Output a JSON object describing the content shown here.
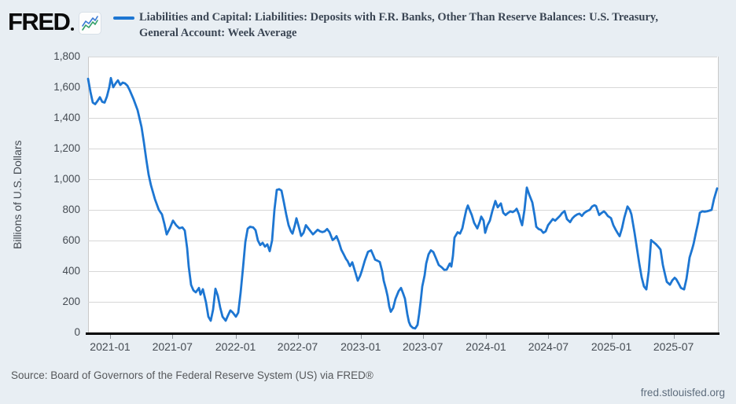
{
  "logo": {
    "text": "FRED",
    "badge_icon": "sparkline-icon"
  },
  "legend": {
    "series_color": "#1d76d2",
    "title_line1": "Liabilities and Capital: Liabilities: Deposits with F.R. Banks, Other Than Reserve Balances: U.S. Treasury,",
    "title_line2": "General Account: Week Average"
  },
  "footer": {
    "source": "Source: Board of Governors of the Federal Reserve System (US) via FRED®",
    "link": "fred.stlouisfed.org"
  },
  "chart_data": {
    "type": "line",
    "title": "Liabilities and Capital: Liabilities: Deposits with F.R. Banks, Other Than Reserve Balances: U.S. Treasury, General Account: Week Average",
    "ylabel": "Billions of U.S. Dollars",
    "units": "billions of U.S. dollars, weekly averages",
    "ylim": [
      0,
      1800
    ],
    "grid": "horizontal",
    "legend_position": "top",
    "line_color": "#1d76d2",
    "background_color": "#e8eef3",
    "plot_background": "#ffffff",
    "y_ticks": [
      {
        "label": "0",
        "value": 0
      },
      {
        "label": "200",
        "value": 200
      },
      {
        "label": "400",
        "value": 400
      },
      {
        "label": "600",
        "value": 600
      },
      {
        "label": "800",
        "value": 800
      },
      {
        "label": "1,000",
        "value": 1000
      },
      {
        "label": "1,200",
        "value": 1200
      },
      {
        "label": "1,400",
        "value": 1400
      },
      {
        "label": "1,600",
        "value": 1600
      },
      {
        "label": "1,800",
        "value": 1800
      }
    ],
    "x_ticks": [
      {
        "label": "2021-01",
        "f": 0.035
      },
      {
        "label": "2021-07",
        "f": 0.1341
      },
      {
        "label": "2022-01",
        "f": 0.2345
      },
      {
        "label": "2022-07",
        "f": 0.3331
      },
      {
        "label": "2023-01",
        "f": 0.4335
      },
      {
        "label": "2023-07",
        "f": 0.5321
      },
      {
        "label": "2024-01",
        "f": 0.6325
      },
      {
        "label": "2024-07",
        "f": 0.7318
      },
      {
        "label": "2025-01",
        "f": 0.832
      },
      {
        "label": "2025-07",
        "f": 0.9308
      }
    ],
    "series": [
      {
        "name": "Deposits with F.R. Banks, Other Than Reserve Balances: U.S. Treasury, General Account: Week Average",
        "point_format": "[x_fraction_of_time_axis, billions_of_usd]",
        "points": [
          [
            0.0,
            1655
          ],
          [
            0.0037,
            1570
          ],
          [
            0.0075,
            1500
          ],
          [
            0.0112,
            1490
          ],
          [
            0.015,
            1510
          ],
          [
            0.0187,
            1535
          ],
          [
            0.0225,
            1505
          ],
          [
            0.0262,
            1500
          ],
          [
            0.03,
            1540
          ],
          [
            0.0337,
            1600
          ],
          [
            0.0362,
            1660
          ],
          [
            0.04,
            1600
          ],
          [
            0.0437,
            1625
          ],
          [
            0.0475,
            1645
          ],
          [
            0.0512,
            1615
          ],
          [
            0.055,
            1630
          ],
          [
            0.0587,
            1625
          ],
          [
            0.0625,
            1610
          ],
          [
            0.0662,
            1580
          ],
          [
            0.0725,
            1520
          ],
          [
            0.0787,
            1450
          ],
          [
            0.085,
            1340
          ],
          [
            0.0887,
            1240
          ],
          [
            0.0925,
            1130
          ],
          [
            0.0962,
            1030
          ],
          [
            0.1,
            960
          ],
          [
            0.1062,
            870
          ],
          [
            0.1125,
            800
          ],
          [
            0.1175,
            770
          ],
          [
            0.1212,
            710
          ],
          [
            0.125,
            640
          ],
          [
            0.13,
            680
          ],
          [
            0.135,
            730
          ],
          [
            0.14,
            700
          ],
          [
            0.145,
            680
          ],
          [
            0.15,
            685
          ],
          [
            0.1537,
            665
          ],
          [
            0.1575,
            550
          ],
          [
            0.16,
            430
          ],
          [
            0.1637,
            310
          ],
          [
            0.1675,
            275
          ],
          [
            0.1712,
            262
          ],
          [
            0.1762,
            290
          ],
          [
            0.1787,
            247
          ],
          [
            0.1825,
            282
          ],
          [
            0.1875,
            196
          ],
          [
            0.1912,
            103
          ],
          [
            0.195,
            77
          ],
          [
            0.1987,
            150
          ],
          [
            0.2025,
            285
          ],
          [
            0.2062,
            240
          ],
          [
            0.21,
            163
          ],
          [
            0.2137,
            103
          ],
          [
            0.2187,
            77
          ],
          [
            0.2225,
            112
          ],
          [
            0.2262,
            144
          ],
          [
            0.23,
            130
          ],
          [
            0.235,
            103
          ],
          [
            0.2387,
            130
          ],
          [
            0.2425,
            260
          ],
          [
            0.2462,
            420
          ],
          [
            0.25,
            590
          ],
          [
            0.2537,
            677
          ],
          [
            0.2575,
            690
          ],
          [
            0.2625,
            685
          ],
          [
            0.2662,
            667
          ],
          [
            0.27,
            600
          ],
          [
            0.2737,
            570
          ],
          [
            0.2775,
            585
          ],
          [
            0.2812,
            560
          ],
          [
            0.285,
            575
          ],
          [
            0.2887,
            530
          ],
          [
            0.2925,
            600
          ],
          [
            0.2962,
            800
          ],
          [
            0.3,
            930
          ],
          [
            0.3037,
            935
          ],
          [
            0.3075,
            925
          ],
          [
            0.3112,
            850
          ],
          [
            0.315,
            770
          ],
          [
            0.3187,
            700
          ],
          [
            0.3225,
            660
          ],
          [
            0.325,
            645
          ],
          [
            0.3287,
            700
          ],
          [
            0.3312,
            745
          ],
          [
            0.335,
            690
          ],
          [
            0.3387,
            630
          ],
          [
            0.3425,
            650
          ],
          [
            0.3462,
            700
          ],
          [
            0.35,
            680
          ],
          [
            0.3537,
            660
          ],
          [
            0.3575,
            640
          ],
          [
            0.3612,
            655
          ],
          [
            0.365,
            670
          ],
          [
            0.3687,
            660
          ],
          [
            0.3725,
            655
          ],
          [
            0.3762,
            660
          ],
          [
            0.38,
            675
          ],
          [
            0.3837,
            655
          ],
          [
            0.3887,
            603
          ],
          [
            0.3925,
            615
          ],
          [
            0.395,
            628
          ],
          [
            0.3987,
            590
          ],
          [
            0.4025,
            540
          ],
          [
            0.4062,
            511
          ],
          [
            0.41,
            480
          ],
          [
            0.4125,
            466
          ],
          [
            0.4162,
            433
          ],
          [
            0.42,
            458
          ],
          [
            0.425,
            390
          ],
          [
            0.4287,
            338
          ],
          [
            0.4325,
            370
          ],
          [
            0.435,
            400
          ],
          [
            0.44,
            470
          ],
          [
            0.445,
            526
          ],
          [
            0.45,
            536
          ],
          [
            0.4537,
            500
          ],
          [
            0.4562,
            475
          ],
          [
            0.46,
            468
          ],
          [
            0.4637,
            460
          ],
          [
            0.4675,
            400
          ],
          [
            0.47,
            338
          ],
          [
            0.4737,
            280
          ],
          [
            0.4762,
            235
          ],
          [
            0.4787,
            170
          ],
          [
            0.4812,
            135
          ],
          [
            0.485,
            160
          ],
          [
            0.4887,
            220
          ],
          [
            0.4937,
            270
          ],
          [
            0.4975,
            290
          ],
          [
            0.5012,
            250
          ],
          [
            0.5037,
            220
          ],
          [
            0.5075,
            120
          ],
          [
            0.51,
            70
          ],
          [
            0.5125,
            45
          ],
          [
            0.5162,
            30
          ],
          [
            0.52,
            26
          ],
          [
            0.5237,
            50
          ],
          [
            0.5262,
            120
          ],
          [
            0.5287,
            204
          ],
          [
            0.5312,
            300
          ],
          [
            0.535,
            373
          ],
          [
            0.5375,
            450
          ],
          [
            0.5412,
            510
          ],
          [
            0.545,
            536
          ],
          [
            0.5487,
            525
          ],
          [
            0.5525,
            490
          ],
          [
            0.5575,
            440
          ],
          [
            0.5625,
            424
          ],
          [
            0.5662,
            408
          ],
          [
            0.57,
            410
          ],
          [
            0.575,
            450
          ],
          [
            0.5775,
            430
          ],
          [
            0.58,
            500
          ],
          [
            0.5825,
            619
          ],
          [
            0.5875,
            654
          ],
          [
            0.5912,
            645
          ],
          [
            0.595,
            680
          ],
          [
            0.5975,
            730
          ],
          [
            0.6012,
            800
          ],
          [
            0.6037,
            828
          ],
          [
            0.6075,
            790
          ],
          [
            0.61,
            766
          ],
          [
            0.6137,
            715
          ],
          [
            0.6187,
            679
          ],
          [
            0.6225,
            720
          ],
          [
            0.625,
            756
          ],
          [
            0.6287,
            730
          ],
          [
            0.6312,
            650
          ],
          [
            0.635,
            700
          ],
          [
            0.6387,
            730
          ],
          [
            0.6425,
            790
          ],
          [
            0.6475,
            858
          ],
          [
            0.6512,
            817
          ],
          [
            0.6562,
            842
          ],
          [
            0.66,
            781
          ],
          [
            0.6637,
            766
          ],
          [
            0.6675,
            780
          ],
          [
            0.6712,
            790
          ],
          [
            0.675,
            785
          ],
          [
            0.6787,
            795
          ],
          [
            0.6812,
            807
          ],
          [
            0.685,
            770
          ],
          [
            0.6875,
            730
          ],
          [
            0.69,
            700
          ],
          [
            0.6937,
            800
          ],
          [
            0.6975,
            945
          ],
          [
            0.7012,
            900
          ],
          [
            0.7062,
            848
          ],
          [
            0.71,
            760
          ],
          [
            0.7125,
            690
          ],
          [
            0.7162,
            675
          ],
          [
            0.72,
            669
          ],
          [
            0.7237,
            650
          ],
          [
            0.7275,
            660
          ],
          [
            0.7312,
            700
          ],
          [
            0.735,
            720
          ],
          [
            0.7387,
            740
          ],
          [
            0.7425,
            730
          ],
          [
            0.7462,
            745
          ],
          [
            0.75,
            760
          ],
          [
            0.7537,
            780
          ],
          [
            0.7575,
            792
          ],
          [
            0.7612,
            740
          ],
          [
            0.7662,
            720
          ],
          [
            0.77,
            745
          ],
          [
            0.7737,
            760
          ],
          [
            0.7775,
            770
          ],
          [
            0.7812,
            775
          ],
          [
            0.785,
            760
          ],
          [
            0.7887,
            780
          ],
          [
            0.7925,
            790
          ],
          [
            0.7975,
            800
          ],
          [
            0.8012,
            822
          ],
          [
            0.805,
            830
          ],
          [
            0.8075,
            825
          ],
          [
            0.8125,
            766
          ],
          [
            0.8162,
            780
          ],
          [
            0.82,
            790
          ],
          [
            0.8225,
            781
          ],
          [
            0.8262,
            760
          ],
          [
            0.8312,
            746
          ],
          [
            0.835,
            700
          ],
          [
            0.8387,
            670
          ],
          [
            0.8425,
            644
          ],
          [
            0.845,
            628
          ],
          [
            0.8487,
            680
          ],
          [
            0.8525,
            750
          ],
          [
            0.8575,
            822
          ],
          [
            0.8612,
            800
          ],
          [
            0.8637,
            770
          ],
          [
            0.8687,
            650
          ],
          [
            0.8725,
            550
          ],
          [
            0.8762,
            450
          ],
          [
            0.88,
            360
          ],
          [
            0.8837,
            300
          ],
          [
            0.8875,
            281
          ],
          [
            0.8912,
            400
          ],
          [
            0.895,
            603
          ],
          [
            0.8987,
            590
          ],
          [
            0.9025,
            577
          ],
          [
            0.9062,
            560
          ],
          [
            0.91,
            541
          ],
          [
            0.9137,
            440
          ],
          [
            0.9175,
            373
          ],
          [
            0.92,
            330
          ],
          [
            0.925,
            312
          ],
          [
            0.9287,
            340
          ],
          [
            0.9325,
            357
          ],
          [
            0.935,
            347
          ],
          [
            0.9387,
            320
          ],
          [
            0.9425,
            290
          ],
          [
            0.9475,
            281
          ],
          [
            0.9512,
            350
          ],
          [
            0.9562,
            490
          ],
          [
            0.96,
            540
          ],
          [
            0.9625,
            577
          ],
          [
            0.9662,
            650
          ],
          [
            0.97,
            720
          ],
          [
            0.9725,
            781
          ],
          [
            0.9762,
            790
          ],
          [
            0.98,
            788
          ],
          [
            0.9837,
            790
          ],
          [
            0.9875,
            795
          ],
          [
            0.9912,
            800
          ],
          [
            0.995,
            870
          ],
          [
            1.0,
            940
          ]
        ]
      }
    ]
  }
}
